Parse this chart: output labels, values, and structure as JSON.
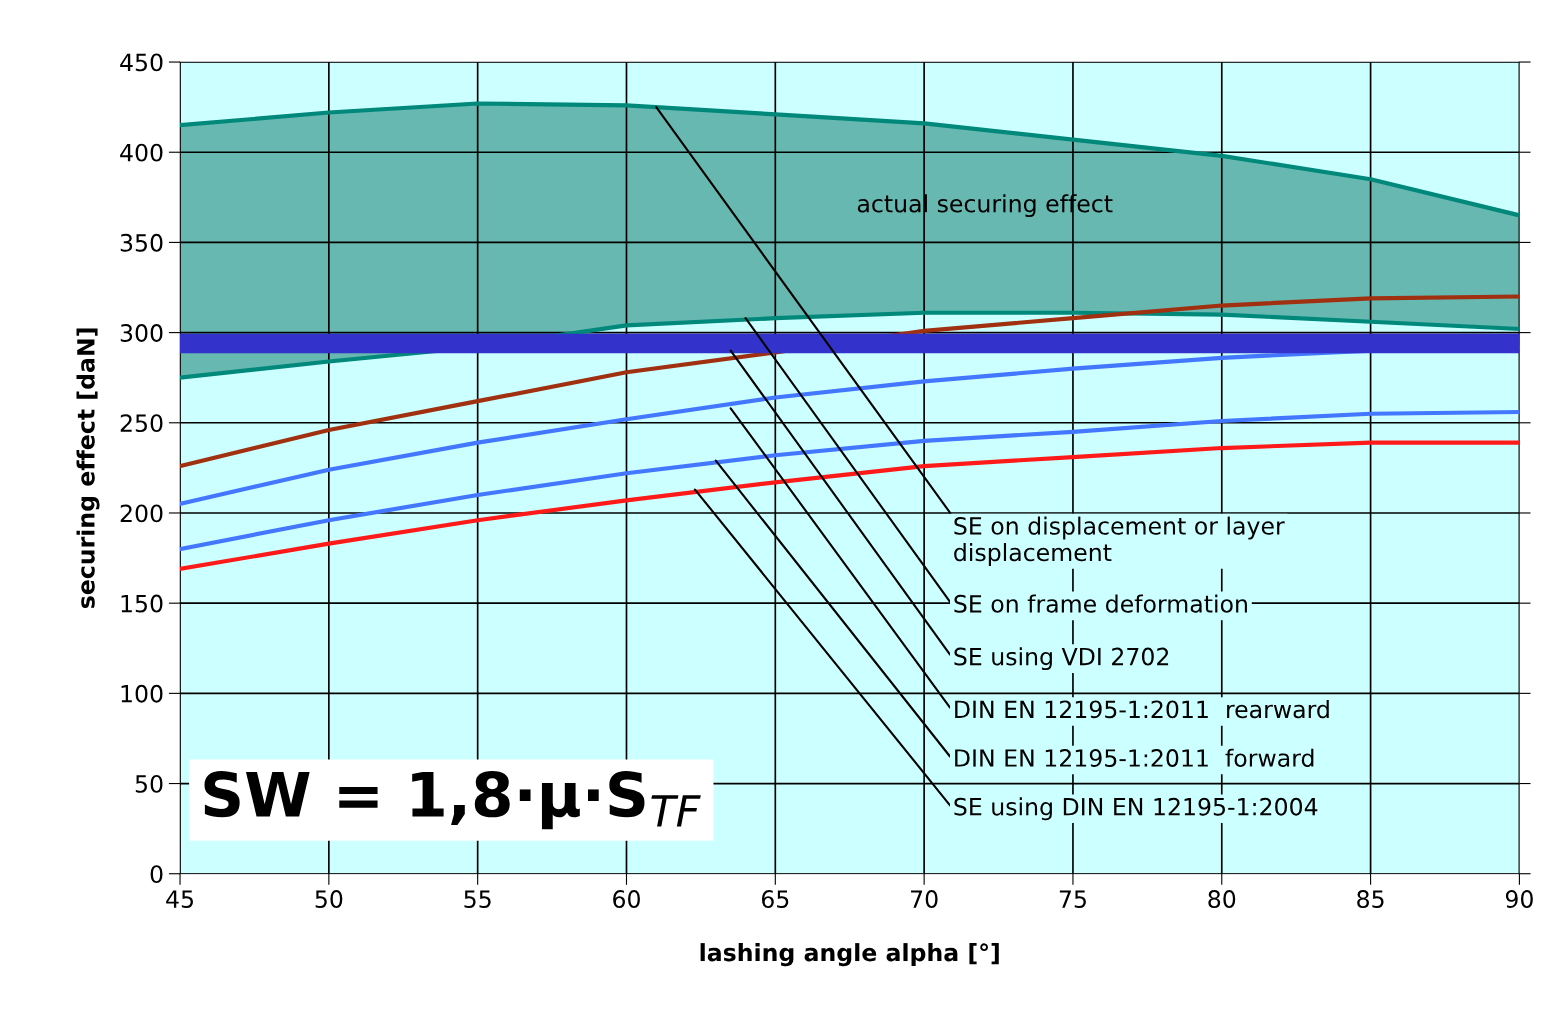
{
  "chart_data": {
    "type": "line",
    "xlabel": "lashing angle alpha [°]",
    "ylabel": "securing effect [daN]",
    "x": [
      45,
      50,
      55,
      60,
      65,
      70,
      75,
      80,
      85,
      90
    ],
    "series": [
      {
        "color": "#00897b",
        "values": [
          415,
          422,
          427,
          426,
          421,
          416,
          407,
          398,
          385,
          365
        ],
        "lower": [
          275,
          284,
          292,
          304,
          308,
          311,
          311,
          310,
          306,
          302
        ],
        "upper": [
          415,
          422,
          427,
          426,
          421,
          416,
          407,
          398,
          385,
          365
        ]
      },
      {
        "color": "#00897b",
        "values": [
          275,
          284,
          292,
          304,
          308,
          311,
          311,
          310,
          306,
          302
        ]
      },
      {
        "color": "#a03010",
        "values": [
          226,
          246,
          262,
          278,
          289,
          301,
          308,
          315,
          319,
          320
        ]
      },
      {
        "color": "#4477ff",
        "values": [
          205,
          224,
          239,
          252,
          264,
          273,
          280,
          286,
          290,
          292
        ]
      },
      {
        "color": "#4477ff",
        "values": [
          180,
          196,
          210,
          222,
          232,
          240,
          245,
          251,
          255,
          256
        ]
      },
      {
        "color": "#ff1a1a",
        "values": [
          169,
          183,
          196,
          207,
          217,
          226,
          231,
          236,
          239,
          239
        ]
      }
    ],
    "ref_lines": [
      {
        "axis": "y",
        "value": 294,
        "color": "#3333cc"
      }
    ],
    "xlim": [
      45,
      90
    ],
    "xticks": [
      45,
      50,
      55,
      60,
      65,
      70,
      75,
      80,
      85,
      90
    ],
    "ylim": [
      0,
      450
    ],
    "yticks": [
      0,
      50,
      100,
      150,
      200,
      250,
      300,
      350,
      400,
      450
    ],
    "grid": true,
    "annotations": [
      "actual securing effect",
      {
        "text": "SE on displacement or layer\ndisplacement",
        "x": 61,
        "y": 425
      },
      {
        "text": "SE on frame deformation",
        "x": 64,
        "y": 308
      },
      {
        "text": "SE using VDI 2702",
        "x": 63.5,
        "y": 290
      },
      {
        "text": "DIN EN 12195-1:2011  rearward",
        "x": 63.5,
        "y": 258
      },
      {
        "text": "DIN EN 12195-1:2011  forward",
        "x": 63,
        "y": 229
      },
      {
        "text": "SE using DIN EN 12195-1:2004",
        "x": 62.3,
        "y": 213
      },
      "SW = 1,8·μ·S$_{TF}$"
    ]
  }
}
